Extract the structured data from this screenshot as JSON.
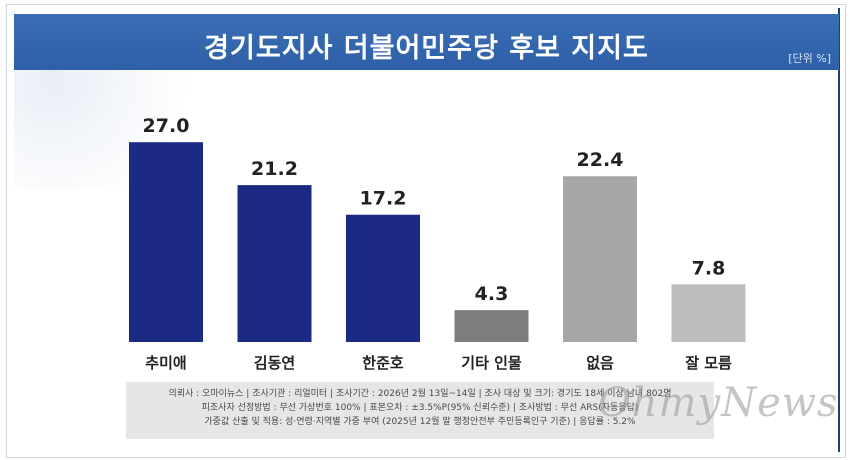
{
  "header": {
    "title": "경기도지사 더불어민주당 후보 지지도",
    "unit": "[단위 %]"
  },
  "chart_data": {
    "type": "bar",
    "categories": [
      "추미애",
      "김동연",
      "한준호",
      "기타 인물",
      "없음",
      "잘 모름"
    ],
    "values": [
      27.0,
      21.2,
      17.2,
      4.3,
      22.4,
      7.8
    ],
    "value_labels": [
      "27.0",
      "21.2",
      "17.2",
      "4.3",
      "22.4",
      "7.8"
    ],
    "colors": [
      "#1b2a85",
      "#1b2a85",
      "#1b2a85",
      "#7d7d7d",
      "#a6a6a6",
      "#bdbdbd"
    ],
    "ylim": [
      0,
      30
    ],
    "title": "경기도지사 더불어민주당 후보 지지도",
    "xlabel": "",
    "ylabel": "",
    "grid": false
  },
  "notes": [
    "의뢰사 : 오마이뉴스 | 조사기관 : 리얼미터 | 조사기간 : 2026년 2월 13일~14일 | 조사 대상 및 크기: 경기도 18세 이상 남녀 802명",
    "피조사자 선정방법 : 무선 가상번호 100% | 표본오차 : ±3.5%P(95% 신뢰수준) | 조사방법 : 무선 ARS(자동응답)",
    "가중값 산출 및 적용: 성·연령·지역별 가중 부여 (2025년 12월 말 행정안전부 주민등록인구 기준) | 응답률 : 5.2%"
  ],
  "watermark": "OhmyNews"
}
